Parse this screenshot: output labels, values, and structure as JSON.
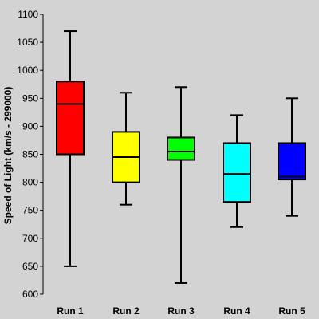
{
  "chart_data": {
    "type": "box",
    "title": "",
    "xlabel": "",
    "ylabel": "Speed of Light (km/s - 299000)",
    "ylim": [
      600,
      1100
    ],
    "yticks": [
      600,
      650,
      700,
      750,
      800,
      850,
      900,
      950,
      1000,
      1050,
      1100
    ],
    "grid": false,
    "categories": [
      "Run 1",
      "Run 2",
      "Run 3",
      "Run 4",
      "Run 5"
    ],
    "series": [
      {
        "category": "Run 1",
        "min": 650,
        "q1": 850,
        "median": 940,
        "q3": 980,
        "max": 1070,
        "color": "#ff0000"
      },
      {
        "category": "Run 2",
        "min": 760,
        "q1": 800,
        "median": 845,
        "q3": 890,
        "max": 960,
        "color": "#ffff00"
      },
      {
        "category": "Run 3",
        "min": 620,
        "q1": 840,
        "median": 855,
        "q3": 880,
        "max": 970,
        "color": "#00ff00"
      },
      {
        "category": "Run 4",
        "min": 720,
        "q1": 765,
        "median": 815,
        "q3": 870,
        "max": 920,
        "color": "#00ffff"
      },
      {
        "category": "Run 5",
        "min": 740,
        "q1": 805,
        "median": 810,
        "q3": 870,
        "max": 950,
        "color": "#0000ff"
      }
    ]
  }
}
